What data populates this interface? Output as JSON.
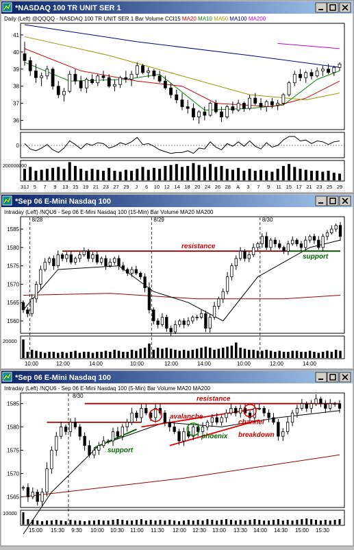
{
  "panels": [
    {
      "id": "p1",
      "window_title": "*NASDAQ 100 TR UNIT SER 1",
      "info_prefix": "Daily  (Left)   @QQQQ - NASDAQ 100 TR UNIT SER 1  Bar  Volume  CCI15",
      "info_ma": [
        {
          "label": "MA20",
          "color": "#cc0000"
        },
        {
          "label": "MA10",
          "color": "#008800"
        },
        {
          "label": "MA50",
          "color": "#999900"
        },
        {
          "label": "MA100",
          "color": "#000080"
        },
        {
          "label": "MA200",
          "color": "#cc00cc"
        }
      ],
      "price_ticks": [
        "41",
        "40",
        "39",
        "38",
        "37",
        "36"
      ],
      "cci_ticks": [
        "0"
      ],
      "volume_ticks": [
        "200000000"
      ],
      "x_ticks": [
        "31J",
        "5",
        "7",
        "9",
        "13",
        "15",
        "19",
        "21",
        "23",
        "27",
        "29",
        "J",
        "6",
        "10",
        "12",
        "14",
        "18",
        "20",
        "24",
        "26",
        "28",
        "A",
        "3",
        "7",
        "9",
        "11",
        "15",
        "17",
        "21",
        "23",
        "25",
        "29"
      ]
    },
    {
      "id": "p2",
      "window_title": "*Sep 06  E-Mini Nasdaq 100",
      "info_prefix": "Intraday  (Left)   /NQU6 - Sep 06  E-Mini Nasdaq 100 (15-Min)  Bar  Volume  MA20  MA200",
      "info_ma": [],
      "price_ticks": [
        "1585",
        "1580",
        "1575",
        "1570",
        "1565",
        "1560"
      ],
      "volume_ticks": [
        "20000"
      ],
      "x_ticks": [
        "10:00",
        "12:00",
        "14:00",
        "10:00",
        "12:00",
        "14:00",
        "10:00",
        "12:00",
        "14:00"
      ],
      "date_markers": [
        "8/28",
        "8/29",
        "8/30"
      ],
      "annotations": [
        "resistance",
        "support"
      ]
    },
    {
      "id": "p3",
      "window_title": "*Sep 06  E-Mini Nasdaq 100",
      "info_prefix": "Intraday  (Left)   /NQU6 - Sep 06  E-Mini Nasdaq 100 (5-Min)  Bar  Volume  MA20  MA200",
      "info_ma": [],
      "price_ticks": [
        "1585",
        "1580",
        "1575",
        "1570",
        "1565"
      ],
      "volume_ticks": [
        "10000"
      ],
      "x_ticks": [
        "15:00",
        "15:30",
        "9:30",
        "10:00",
        "10:30",
        "11:00",
        "11:30",
        "12:00",
        "12:30",
        "13:00",
        "13:30",
        "14:00",
        "14:30",
        "15:00",
        "15:30"
      ],
      "date_markers": [
        "8/30"
      ],
      "annotations": [
        "resistance",
        "avalanche",
        "support",
        "phoenix",
        "channel",
        "breakdown"
      ]
    }
  ],
  "colors": {
    "title_bar": "#0a246a",
    "title_bar_end": "#a6caf0",
    "plot_bg": "#ffffff",
    "candle": "#000000",
    "annot_red": "#cc0000",
    "annot_green": "#006600",
    "resistance_line": "#990000",
    "support_line": "#006600"
  },
  "chart_data": [
    {
      "type": "candlestick",
      "title": "@QQQQ - NASDAQ 100 TR UNIT SER 1",
      "timeframe": "Daily",
      "ylim": [
        35.5,
        41.6
      ],
      "ohlc": [
        [
          39.9,
          40.6,
          39.2,
          39.5
        ],
        [
          39.5,
          39.7,
          38.6,
          38.9
        ],
        [
          38.9,
          39.3,
          38.2,
          38.5
        ],
        [
          38.5,
          38.8,
          38.0,
          38.6
        ],
        [
          38.6,
          39.2,
          38.4,
          39.0
        ],
        [
          39.0,
          39.1,
          37.8,
          38.0
        ],
        [
          38.0,
          38.3,
          37.3,
          37.5
        ],
        [
          37.5,
          37.9,
          37.1,
          37.7
        ],
        [
          37.7,
          38.9,
          37.6,
          38.7
        ],
        [
          38.7,
          39.0,
          38.1,
          38.3
        ],
        [
          38.3,
          38.6,
          37.7,
          37.9
        ],
        [
          37.9,
          38.5,
          37.6,
          38.4
        ],
        [
          38.4,
          38.7,
          38.1,
          38.2
        ],
        [
          38.2,
          38.7,
          38.0,
          38.6
        ],
        [
          38.6,
          38.9,
          38.3,
          38.5
        ],
        [
          38.5,
          38.7,
          37.9,
          38.0
        ],
        [
          38.0,
          38.4,
          37.7,
          38.1
        ],
        [
          38.1,
          38.6,
          37.9,
          38.5
        ],
        [
          38.5,
          38.9,
          38.2,
          38.4
        ],
        [
          38.4,
          38.9,
          38.0,
          38.7
        ],
        [
          38.7,
          39.4,
          38.5,
          39.2
        ],
        [
          39.2,
          39.3,
          38.7,
          38.8
        ],
        [
          38.8,
          39.1,
          38.5,
          38.9
        ],
        [
          38.9,
          39.0,
          38.4,
          38.6
        ],
        [
          38.6,
          38.9,
          38.2,
          38.3
        ],
        [
          38.3,
          38.6,
          37.8,
          37.9
        ],
        [
          37.9,
          38.2,
          37.3,
          37.5
        ],
        [
          37.5,
          37.8,
          37.0,
          37.2
        ],
        [
          37.2,
          37.6,
          36.6,
          36.8
        ],
        [
          36.8,
          37.2,
          36.4,
          36.7
        ],
        [
          36.7,
          37.0,
          36.0,
          36.2
        ],
        [
          36.2,
          36.6,
          35.8,
          36.5
        ],
        [
          36.5,
          36.8,
          36.0,
          36.3
        ],
        [
          36.3,
          37.1,
          36.2,
          37.0
        ],
        [
          37.0,
          37.2,
          36.4,
          36.5
        ],
        [
          36.5,
          36.8,
          35.9,
          36.2
        ],
        [
          36.2,
          36.9,
          36.1,
          36.8
        ],
        [
          36.8,
          37.1,
          36.4,
          36.6
        ],
        [
          36.6,
          37.2,
          36.5,
          37.0
        ],
        [
          37.0,
          37.1,
          36.5,
          36.7
        ],
        [
          36.7,
          37.5,
          36.6,
          37.3
        ],
        [
          37.3,
          37.6,
          36.9,
          37.0
        ],
        [
          37.0,
          37.3,
          36.6,
          36.8
        ],
        [
          36.8,
          37.2,
          36.5,
          37.1
        ],
        [
          37.1,
          37.3,
          36.7,
          36.9
        ],
        [
          36.9,
          37.2,
          36.6,
          37.0
        ],
        [
          37.0,
          37.6,
          36.9,
          37.5
        ],
        [
          37.5,
          38.3,
          37.4,
          38.2
        ],
        [
          38.2,
          38.9,
          38.0,
          38.7
        ],
        [
          38.7,
          39.0,
          38.3,
          38.5
        ],
        [
          38.5,
          38.9,
          38.2,
          38.8
        ],
        [
          38.8,
          39.0,
          38.4,
          38.6
        ],
        [
          38.6,
          39.1,
          38.5,
          38.9
        ],
        [
          38.9,
          39.2,
          38.6,
          39.0
        ],
        [
          39.0,
          39.3,
          38.7,
          38.8
        ],
        [
          38.8,
          39.2,
          38.6,
          39.1
        ],
        [
          39.1,
          39.4,
          38.9,
          39.3
        ]
      ],
      "ma": {
        "MA10": [
          [
            0,
            39.4
          ],
          [
            8,
            38.3
          ],
          [
            18,
            38.4
          ],
          [
            24,
            38.7
          ],
          [
            32,
            36.6
          ],
          [
            40,
            36.7
          ],
          [
            46,
            36.9
          ],
          [
            52,
            38.4
          ],
          [
            56,
            38.9
          ]
        ],
        "MA20": [
          [
            0,
            40.2
          ],
          [
            10,
            38.9
          ],
          [
            20,
            38.3
          ],
          [
            28,
            38.0
          ],
          [
            34,
            37.0
          ],
          [
            44,
            36.8
          ],
          [
            50,
            37.3
          ],
          [
            56,
            38.3
          ]
        ],
        "MA50": [
          [
            0,
            40.9
          ],
          [
            15,
            39.8
          ],
          [
            28,
            38.6
          ],
          [
            40,
            37.5
          ],
          [
            50,
            37.2
          ],
          [
            56,
            37.6
          ]
        ],
        "MA100": [
          [
            0,
            41.6
          ],
          [
            20,
            40.6
          ],
          [
            40,
            39.8
          ],
          [
            56,
            39.1
          ]
        ],
        "MA200": [
          [
            45,
            40.5
          ],
          [
            56,
            40.2
          ]
        ]
      },
      "cci": [
        0.2,
        -0.4,
        -0.6,
        -0.3,
        0.1,
        -0.5,
        -0.8,
        -0.3,
        0.5,
        0.1,
        -0.4,
        0.2,
        0.0,
        0.3,
        0.2,
        -0.3,
        -0.1,
        0.3,
        0.1,
        0.4,
        0.9,
        0.1,
        0.2,
        -0.1,
        -0.5,
        -0.7,
        -0.9,
        -0.8,
        -0.8,
        -0.6,
        -0.9,
        -0.3,
        -0.4,
        0.4,
        -0.2,
        -0.5,
        0.2,
        -0.1,
        0.4,
        -0.1,
        0.5,
        -0.1,
        -0.4,
        0.3,
        -0.2,
        0.0,
        0.6,
        1.0,
        1.0,
        0.5,
        0.6,
        0.2,
        0.5,
        0.4,
        0.1,
        0.4,
        0.5
      ],
      "volume": [
        0.6,
        0.7,
        0.5,
        0.55,
        0.6,
        0.65,
        0.7,
        0.6,
        0.95,
        0.75,
        0.6,
        0.5,
        0.6,
        0.55,
        0.5,
        0.65,
        0.5,
        0.45,
        0.55,
        0.5,
        0.6,
        0.7,
        0.55,
        0.65,
        0.6,
        0.75,
        0.8,
        0.85,
        0.7,
        0.75,
        0.9,
        0.8,
        0.7,
        0.85,
        0.7,
        0.75,
        0.6,
        0.55,
        0.65,
        0.5,
        0.6,
        0.5,
        0.55,
        0.5,
        0.45,
        0.6,
        0.75,
        0.85,
        0.7,
        0.6,
        0.55,
        0.5,
        0.5,
        0.45,
        0.5,
        0.4,
        0.35
      ]
    },
    {
      "type": "candlestick",
      "title": "/NQU6 - Sep 06 E-Mini Nasdaq 100 (15-Min)",
      "timeframe": "15-Min",
      "ylim": [
        1557,
        1588
      ],
      "open": 1565,
      "closes": [
        1563,
        1562,
        1566,
        1570,
        1574,
        1576,
        1577,
        1575,
        1578,
        1577,
        1578,
        1576,
        1577,
        1578,
        1579,
        1577,
        1578,
        1576,
        1577,
        1575,
        1576,
        1577,
        1575,
        1574,
        1573,
        1574,
        1573,
        1572,
        1569,
        1563,
        1560,
        1559,
        1561,
        1558,
        1557,
        1559,
        1560,
        1559,
        1560,
        1561,
        1561,
        1562,
        1558,
        1561,
        1564,
        1566,
        1568,
        1572,
        1575,
        1577,
        1579,
        1577,
        1578,
        1580,
        1581,
        1583,
        1580,
        1582,
        1581,
        1580,
        1579,
        1581,
        1582,
        1581,
        1580,
        1582,
        1583,
        1582,
        1580,
        1583,
        1584,
        1585,
        1586,
        1583
      ],
      "ma20": [
        [
          0,
          1563
        ],
        [
          8,
          1574
        ],
        [
          22,
          1575
        ],
        [
          30,
          1568
        ],
        [
          38,
          1565
        ],
        [
          46,
          1560
        ],
        [
          54,
          1572
        ],
        [
          66,
          1580
        ],
        [
          73,
          1582
        ]
      ],
      "ma200": [
        [
          0,
          1567
        ],
        [
          20,
          1567.5
        ],
        [
          40,
          1566
        ],
        [
          60,
          1566
        ],
        [
          73,
          1567
        ]
      ],
      "resistance": [
        [
          9,
          1579
        ],
        [
          73,
          1579
        ]
      ],
      "support": [
        [
          61,
          1579
        ],
        [
          73,
          1579
        ]
      ],
      "session_breaks": [
        2,
        30,
        55
      ],
      "volume": [
        0.9,
        0.3,
        0.4,
        0.35,
        0.3,
        0.25,
        0.3,
        0.3,
        0.25,
        0.3,
        0.25,
        0.3,
        0.35,
        0.25,
        0.3,
        0.3,
        0.25,
        0.3,
        0.3,
        0.35,
        0.3,
        0.4,
        0.35,
        0.3,
        0.3,
        0.4,
        0.35,
        0.45,
        0.5,
        0.7,
        0.4,
        0.5,
        0.45,
        0.5,
        0.45,
        0.4,
        0.35,
        0.4,
        0.35,
        0.4,
        0.45,
        0.5,
        0.55,
        0.5,
        0.4,
        0.45,
        0.5,
        0.55,
        0.6,
        0.75,
        0.5,
        0.45,
        0.4,
        0.4,
        0.35,
        0.35,
        0.4,
        0.35,
        0.3,
        0.35,
        0.3,
        0.3,
        0.35,
        0.35,
        0.3,
        0.3,
        0.35,
        0.3,
        0.25,
        0.3,
        0.35,
        0.3,
        0.4,
        0.35
      ]
    },
    {
      "type": "candlestick",
      "title": "/NQU6 - Sep 06 E-Mini Nasdaq 100 (5-Min)",
      "timeframe": "5-Min",
      "ylim": [
        1563,
        1587
      ],
      "open": 1567,
      "closes": [
        1567,
        1565,
        1566,
        1564,
        1566,
        1571,
        1575,
        1578,
        1580,
        1579,
        1581,
        1580,
        1578,
        1576,
        1574,
        1575,
        1576,
        1577,
        1577,
        1579,
        1578,
        1580,
        1581,
        1583,
        1582,
        1584,
        1583,
        1582,
        1584,
        1583,
        1581,
        1580,
        1579,
        1577,
        1579,
        1578,
        1580,
        1579,
        1580,
        1581,
        1582,
        1581,
        1582,
        1583,
        1584,
        1583,
        1584,
        1583,
        1582,
        1584,
        1584,
        1583,
        1582,
        1581,
        1578,
        1579,
        1581,
        1583,
        1584,
        1585,
        1584,
        1585,
        1586,
        1585,
        1584,
        1585,
        1585,
        1584
      ],
      "ma20": [
        [
          0,
          1557
        ],
        [
          6,
          1566
        ],
        [
          16,
          1576
        ],
        [
          30,
          1581
        ],
        [
          42,
          1580
        ],
        [
          54,
          1582
        ],
        [
          67,
          1583.5
        ]
      ],
      "ma200": [
        [
          0,
          1565
        ],
        [
          34,
          1569
        ],
        [
          67,
          1574
        ]
      ],
      "resistance_upper": [
        [
          13,
          1585
        ],
        [
          67,
          1585
        ]
      ],
      "resistance_lower": [
        [
          5,
          1581
        ],
        [
          25,
          1581
        ]
      ],
      "support_line": [
        [
          15,
          1575.5
        ],
        [
          24,
          1579.5
        ]
      ],
      "channel_top": [
        [
          25,
          1580
        ],
        [
          50,
          1584
        ]
      ],
      "channel_bottom": [
        [
          31,
          1576
        ],
        [
          50,
          1581.5
        ]
      ],
      "session_break": 10,
      "volume": [
        0.9,
        0.4,
        0.35,
        0.3,
        0.25,
        0.3,
        0.3,
        0.35,
        0.3,
        0.25,
        0.35,
        0.3,
        0.3,
        0.25,
        0.3,
        0.3,
        0.35,
        0.3,
        0.3,
        0.35,
        0.4,
        0.35,
        0.3,
        0.3,
        0.35,
        0.4,
        0.3,
        0.35,
        0.3,
        0.35,
        0.3,
        0.35,
        0.3,
        0.25,
        0.3,
        0.35,
        0.3,
        0.35,
        0.3,
        0.4,
        0.35,
        0.3,
        0.35,
        0.4,
        0.35,
        0.3,
        0.35,
        0.3,
        0.35,
        0.4,
        0.35,
        0.3,
        0.3,
        0.35,
        0.4,
        0.3,
        0.35,
        0.3,
        0.35,
        0.4,
        0.45,
        0.4,
        0.35,
        0.3,
        0.35,
        0.3,
        0.35,
        0.4
      ]
    }
  ]
}
